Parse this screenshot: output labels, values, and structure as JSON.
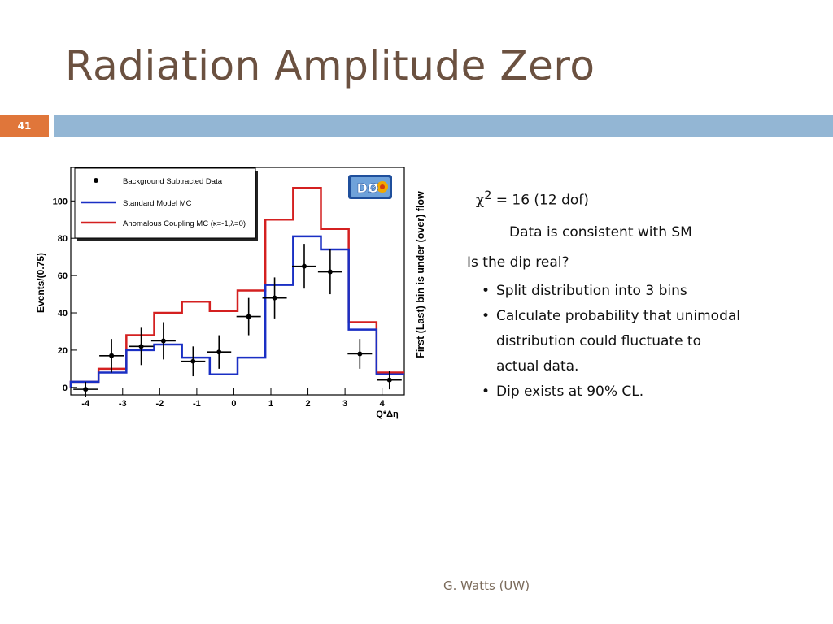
{
  "slide": {
    "title": "Radiation Amplitude Zero",
    "number": "41",
    "footer": "G. Watts (UW)"
  },
  "stats": {
    "chi_symbol": "χ",
    "chi_exp": "2",
    "chi_rest": " = 16 (12 dof)",
    "consistent": "Data is consistent with SM",
    "question": "Is the dip real?",
    "bullets": [
      "Split distribution into 3 bins",
      "Calculate probability that unimodal distribution could fluctuate to actual data.",
      "Dip exists at 90% CL."
    ]
  },
  "chart_data": {
    "type": "line",
    "xlabel": "Q*Δη",
    "ylabel": "Events/(0.75)",
    "right_label": "First (Last) bin is under (over) flow",
    "logo": "DØ",
    "xlim": [
      -4.4,
      4.6
    ],
    "ylim": [
      -4,
      118
    ],
    "x_ticks": [
      -4,
      -3,
      -2,
      -1,
      0,
      1,
      2,
      3,
      4
    ],
    "y_ticks": [
      0,
      20,
      40,
      60,
      80,
      100
    ],
    "grid": false,
    "legend_position": "top-left",
    "bin_edges": [
      -4.4,
      -3.65,
      -2.9,
      -2.15,
      -1.4,
      -0.65,
      0.1,
      0.85,
      1.6,
      2.35,
      3.1,
      3.85,
      4.6
    ],
    "series": [
      {
        "name": "Background Subtracted Data",
        "kind": "points",
        "color": "#000000",
        "x": [
          -4.0,
          -3.3,
          -2.5,
          -1.9,
          -1.1,
          -0.4,
          0.4,
          1.1,
          1.9,
          2.6,
          3.4,
          4.2
        ],
        "values": [
          -1,
          17,
          22,
          25,
          14,
          19,
          38,
          48,
          65,
          62,
          18,
          4
        ],
        "errors": [
          4,
          9,
          10,
          10,
          8,
          9,
          10,
          11,
          12,
          12,
          8,
          5
        ]
      },
      {
        "name": "Standard Model MC",
        "kind": "step",
        "color": "#1a2fc4",
        "values": [
          3,
          8,
          20,
          23,
          16,
          7,
          16,
          55,
          81,
          74,
          31,
          7
        ]
      },
      {
        "name": "Anomalous Coupling MC (κ=-1,λ=0)",
        "kind": "step",
        "color": "#d42020",
        "values": [
          3,
          10,
          28,
          40,
          46,
          41,
          52,
          90,
          107,
          85,
          35,
          8
        ]
      }
    ]
  }
}
